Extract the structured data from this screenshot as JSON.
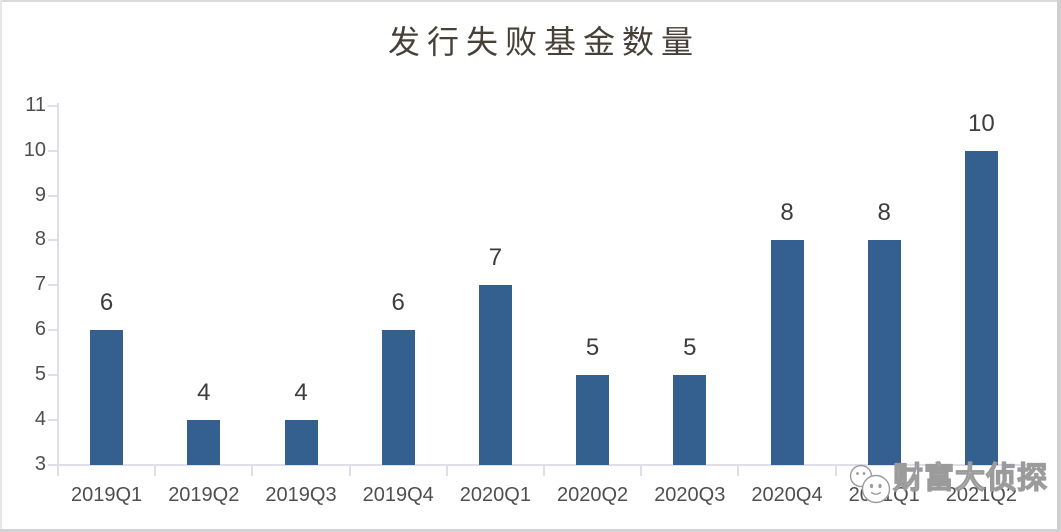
{
  "chart_data": {
    "type": "bar",
    "title": "发行失败基金数量",
    "categories": [
      "2019Q1",
      "2019Q2",
      "2019Q3",
      "2019Q4",
      "2020Q1",
      "2020Q2",
      "2020Q3",
      "2020Q4",
      "2021Q1",
      "2021Q2"
    ],
    "values": [
      6,
      4,
      4,
      6,
      7,
      5,
      5,
      8,
      8,
      10
    ],
    "data_labels": [
      6,
      4,
      4,
      6,
      7,
      5,
      5,
      8,
      8,
      10
    ],
    "xlabel": "",
    "ylabel": "",
    "ylim": [
      3,
      11
    ],
    "yticks": [
      3,
      4,
      5,
      6,
      7,
      8,
      9,
      10,
      11
    ],
    "grid": false,
    "legend": "none",
    "bar_color": "#33608F",
    "axis_color": "#E0DEE9",
    "tick_label_color": "#4F4F4F",
    "data_label_color": "#3D3D3D",
    "title_color": "#474039"
  },
  "watermark": {
    "text": "财富大侦探",
    "icon": "two-chat-faces-icon",
    "fill_color": "#FFFFFF",
    "outline_color": "#9B9B9B"
  }
}
